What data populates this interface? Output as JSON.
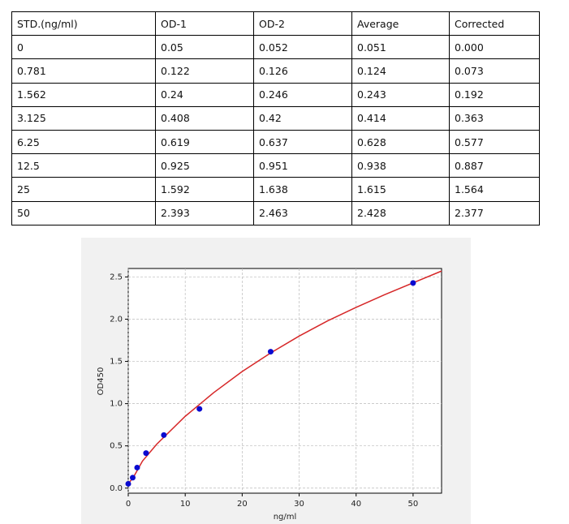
{
  "table": {
    "headers": [
      "STD.(ng/ml)",
      "OD-1",
      "OD-2",
      "Average",
      "Corrected"
    ],
    "rows": [
      [
        "0",
        "0.05",
        "0.052",
        "0.051",
        "0.000"
      ],
      [
        "0.781",
        "0.122",
        "0.126",
        "0.124",
        "0.073"
      ],
      [
        "1.562",
        "0.24",
        "0.246",
        "0.243",
        "0.192"
      ],
      [
        "3.125",
        "0.408",
        "0.42",
        "0.414",
        "0.363"
      ],
      [
        "6.25",
        "0.619",
        "0.637",
        "0.628",
        "0.577"
      ],
      [
        "12.5",
        "0.925",
        "0.951",
        "0.938",
        "0.887"
      ],
      [
        "25",
        "1.592",
        "1.638",
        "1.615",
        "1.564"
      ],
      [
        "50",
        "2.393",
        "2.463",
        "2.428",
        "2.377"
      ]
    ]
  },
  "chart_data": {
    "type": "scatter",
    "xlabel": "ng/ml",
    "ylabel": "OD450",
    "x": [
      0,
      0.781,
      1.562,
      3.125,
      6.25,
      12.5,
      25,
      50
    ],
    "series": [
      {
        "color": "#0a0ad0",
        "values": [
          0.051,
          0.124,
          0.243,
          0.414,
          0.628,
          0.938,
          1.615,
          2.428
        ]
      }
    ],
    "curve": {
      "color": "#d62728",
      "x": [
        0,
        1,
        2.5,
        5,
        10,
        15,
        20,
        25,
        30,
        35,
        40,
        45,
        50,
        55
      ],
      "values": [
        0.05,
        0.14,
        0.32,
        0.52,
        0.85,
        1.13,
        1.38,
        1.6,
        1.8,
        1.98,
        2.14,
        2.29,
        2.43,
        2.57
      ]
    },
    "xlim": [
      0,
      55
    ],
    "ylim": [
      -0.06,
      2.6
    ],
    "xticks": [
      0,
      10,
      20,
      30,
      40,
      50
    ],
    "yticks": [
      {
        "value": 0,
        "label": "0.0"
      },
      0.5,
      {
        "value": 1,
        "label": "1.0"
      },
      1.5,
      {
        "value": 2,
        "label": "2.0"
      },
      2.5
    ],
    "grid": true
  }
}
